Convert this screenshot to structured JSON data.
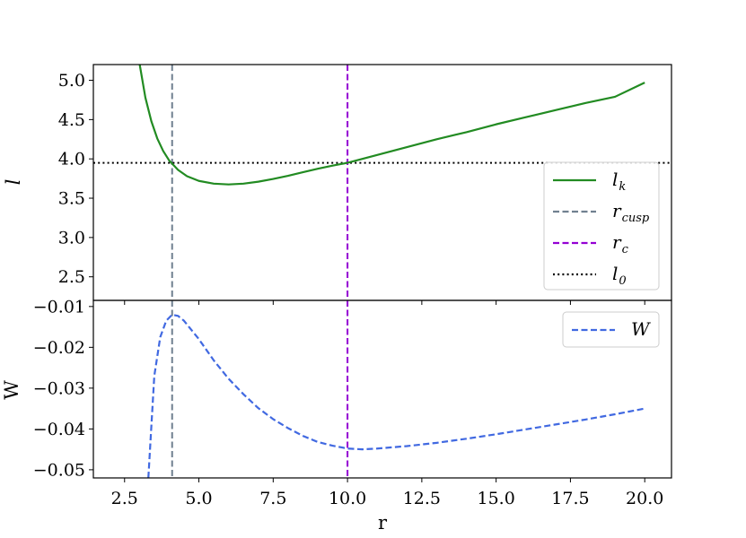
{
  "chart_data": [
    {
      "type": "line",
      "panel": "top",
      "xlabel": "",
      "ylabel": "l",
      "xlim": [
        1.45,
        20.9
      ],
      "ylim": [
        2.2,
        5.2
      ],
      "yticks": [
        2.5,
        3.0,
        3.5,
        4.0,
        4.5,
        5.0
      ],
      "ytick_labels": [
        "2.5",
        "3.0",
        "3.5",
        "4.0",
        "4.5",
        "5.0"
      ],
      "grid": false,
      "legend_position": "lower-right",
      "series": [
        {
          "name": "l_k",
          "legend_main": "l",
          "legend_sub": "k",
          "color": "#228b22",
          "style": "solid",
          "x": [
            3.0,
            3.2,
            3.4,
            3.6,
            3.8,
            4.0,
            4.1,
            4.3,
            4.6,
            5.0,
            5.5,
            6.0,
            6.5,
            7.0,
            7.5,
            8.0,
            8.5,
            9.0,
            9.5,
            10.0,
            11.0,
            12.0,
            13.0,
            14.0,
            15.0,
            16.0,
            17.0,
            18.0,
            19.0,
            20.0
          ],
          "y": [
            5.22,
            4.78,
            4.48,
            4.26,
            4.1,
            3.98,
            3.94,
            3.86,
            3.78,
            3.72,
            3.685,
            3.675,
            3.685,
            3.71,
            3.745,
            3.785,
            3.83,
            3.875,
            3.915,
            3.95,
            4.05,
            4.15,
            4.25,
            4.34,
            4.44,
            4.53,
            4.62,
            4.71,
            4.79,
            4.97
          ]
        },
        {
          "name": "r_cusp",
          "legend_main": "r",
          "legend_sub": "cusp",
          "color": "#708090",
          "style": "dashed",
          "vline_x": 4.1
        },
        {
          "name": "r_c",
          "legend_main": "r",
          "legend_sub": "c",
          "color": "#9400d3",
          "style": "dashed",
          "vline_x": 10.0
        },
        {
          "name": "l_0",
          "legend_main": "l",
          "legend_sub": "0",
          "color": "#000000",
          "style": "dotted",
          "hline_y": 3.95
        }
      ]
    },
    {
      "type": "line",
      "panel": "bottom",
      "xlabel": "r",
      "ylabel": "W",
      "xlim": [
        1.45,
        20.9
      ],
      "ylim": [
        -0.052,
        -0.0085
      ],
      "xticks": [
        2.5,
        5.0,
        7.5,
        10.0,
        12.5,
        15.0,
        17.5,
        20.0
      ],
      "xtick_labels": [
        "2.5",
        "5.0",
        "7.5",
        "10.0",
        "12.5",
        "15.0",
        "17.5",
        "20.0"
      ],
      "yticks": [
        -0.05,
        -0.04,
        -0.03,
        -0.02,
        -0.01
      ],
      "ytick_labels": [
        "−0.05",
        "−0.04",
        "−0.03",
        "−0.02",
        "−0.01"
      ],
      "grid": false,
      "legend_position": "upper-right",
      "series": [
        {
          "name": "W",
          "legend_main": "W",
          "legend_sub": "",
          "color": "#4169e1",
          "style": "dashed",
          "x": [
            3.3,
            3.5,
            3.7,
            3.9,
            4.1,
            4.3,
            4.5,
            5.0,
            5.5,
            6.0,
            6.5,
            7.0,
            7.5,
            8.0,
            8.5,
            9.0,
            9.5,
            10.0,
            10.5,
            11.0,
            12.0,
            13.0,
            14.0,
            15.0,
            16.0,
            17.0,
            18.0,
            19.0,
            20.0
          ],
          "y": [
            -0.052,
            -0.027,
            -0.0175,
            -0.0135,
            -0.012,
            -0.0123,
            -0.0135,
            -0.018,
            -0.0232,
            -0.0277,
            -0.0315,
            -0.0349,
            -0.0376,
            -0.0398,
            -0.0417,
            -0.0432,
            -0.0441,
            -0.0448,
            -0.045,
            -0.0448,
            -0.0442,
            -0.0434,
            -0.0424,
            -0.0413,
            -0.0401,
            -0.0389,
            -0.0377,
            -0.0364,
            -0.035
          ]
        },
        {
          "name": "r_cusp",
          "color": "#708090",
          "style": "dashed",
          "vline_x": 4.1
        },
        {
          "name": "r_c",
          "color": "#9400d3",
          "style": "dashed",
          "vline_x": 10.0
        }
      ]
    }
  ]
}
